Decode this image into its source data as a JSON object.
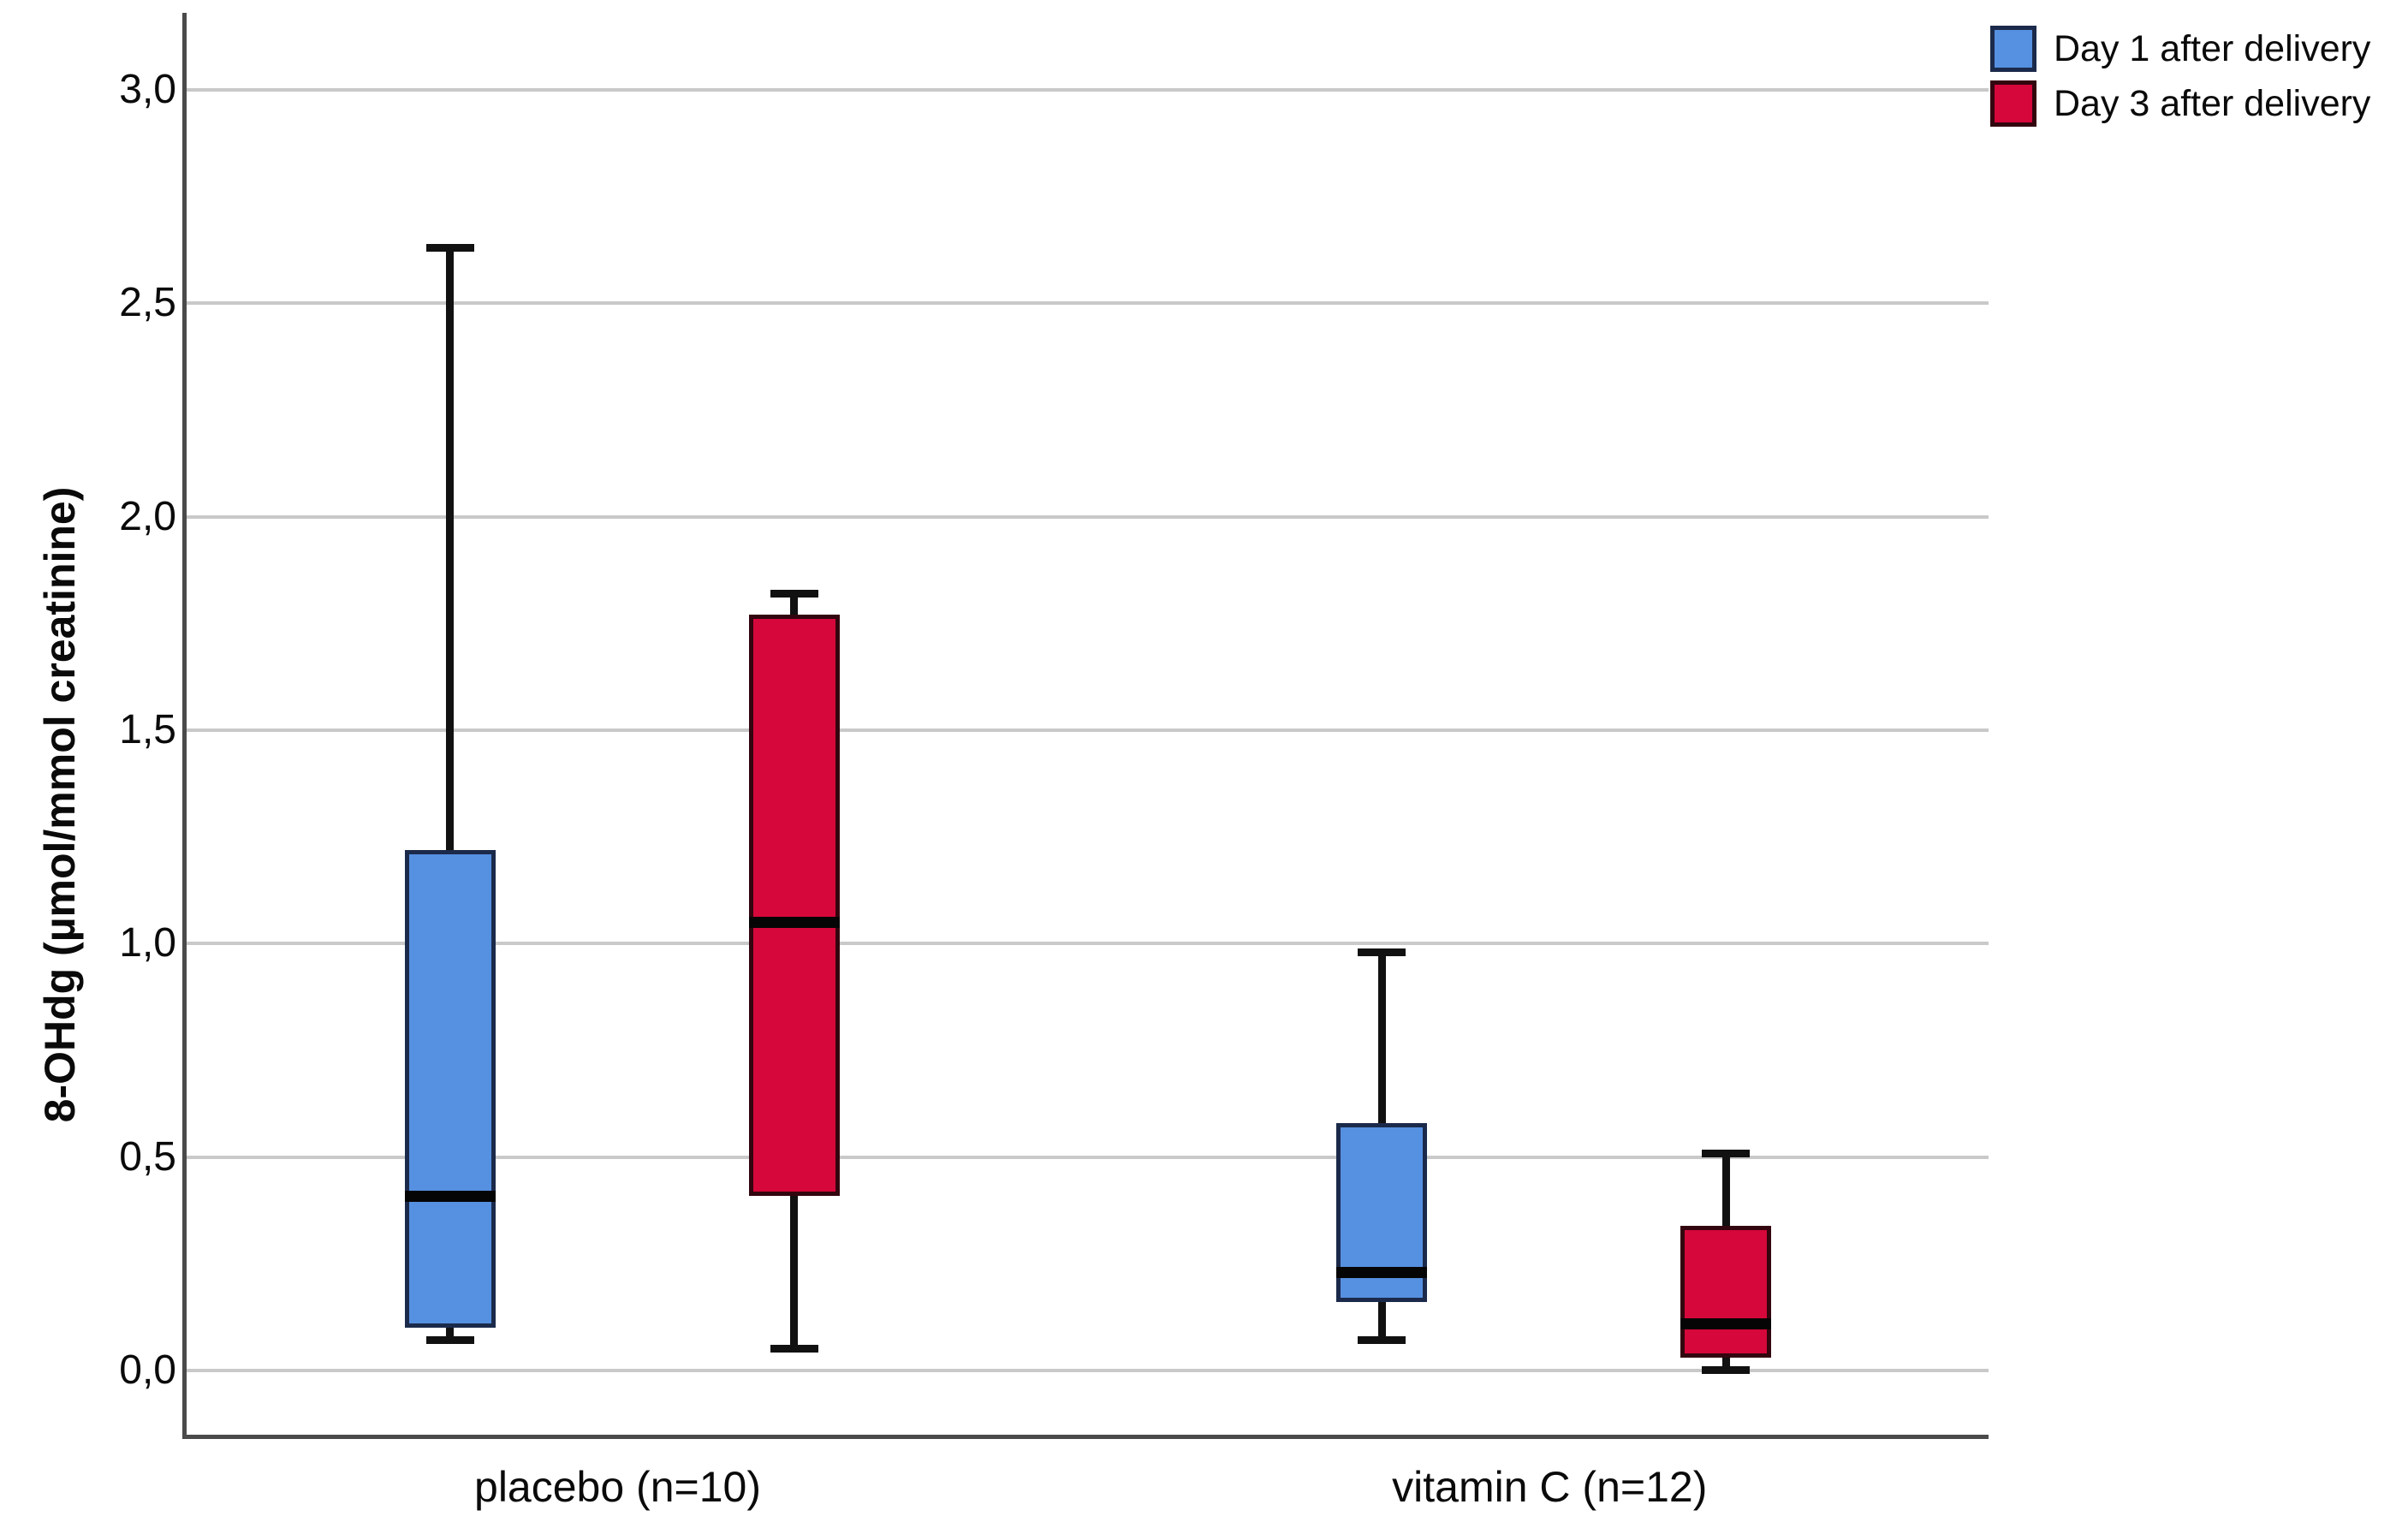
{
  "chart_data": {
    "type": "boxplot",
    "title": "",
    "xlabel": "",
    "ylabel": "8-OHdg (µmol/mmol creatinine)",
    "categories": [
      "placebo (n=10)",
      "vitamin C (n=12)"
    ],
    "ylim": [
      -0.16,
      3.18
    ],
    "grid": true,
    "legend_position": "top-right",
    "decimal_separator": ",",
    "yticks": [
      {
        "value": 0.0,
        "label": "0,0"
      },
      {
        "value": 0.5,
        "label": "0,5"
      },
      {
        "value": 1.0,
        "label": "1,0"
      },
      {
        "value": 1.5,
        "label": "1,5"
      },
      {
        "value": 2.0,
        "label": "2,0"
      },
      {
        "value": 2.5,
        "label": "2,5"
      },
      {
        "value": 3.0,
        "label": "3,0"
      }
    ],
    "legend": [
      {
        "label": "Day 1 after delivery",
        "color": "#5690E0",
        "border": "#1b2a4a"
      },
      {
        "label": "Day 3 after delivery",
        "color": "#D6073A",
        "border": "#33050f"
      }
    ],
    "series": [
      {
        "name": "Day 1 after delivery",
        "color": "#5690E0",
        "border": "#1b2a4a",
        "boxes": [
          {
            "category": "placebo (n=10)",
            "whisker_low": 0.07,
            "q1": 0.1,
            "median": 0.41,
            "q3": 1.22,
            "whisker_high": 2.63
          },
          {
            "category": "vitamin C (n=12)",
            "whisker_low": 0.07,
            "q1": 0.16,
            "median": 0.23,
            "q3": 0.58,
            "whisker_high": 0.98
          }
        ]
      },
      {
        "name": "Day 3 after delivery",
        "color": "#D6073A",
        "border": "#33050f",
        "boxes": [
          {
            "category": "placebo (n=10)",
            "whisker_low": 0.05,
            "q1": 0.41,
            "median": 1.05,
            "q3": 1.77,
            "whisker_high": 1.82
          },
          {
            "category": "vitamin C (n=12)",
            "whisker_low": 0.0,
            "q1": 0.03,
            "median": 0.11,
            "q3": 0.34,
            "whisker_high": 0.51
          }
        ]
      }
    ]
  }
}
